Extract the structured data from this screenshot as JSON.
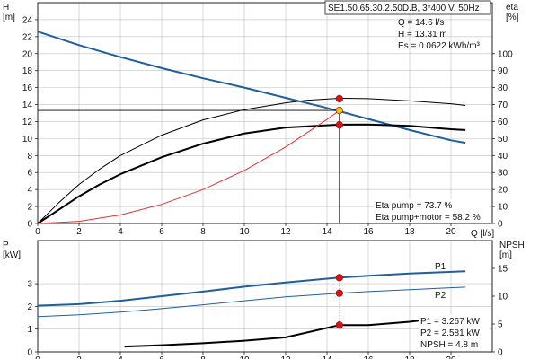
{
  "chart_data": [
    {
      "type": "line",
      "title": "SE1.50.65.30.2.50D.B, 3*400 V, 50Hz",
      "xlabel": "Q [l/s]",
      "ylabel_left": "H\n[m]",
      "ylabel_right": "eta\n[%]",
      "xlim": [
        0,
        22
      ],
      "x_ticks": [
        0,
        2,
        4,
        6,
        8,
        10,
        12,
        14,
        16,
        18,
        20
      ],
      "ylim_left": [
        0,
        26
      ],
      "y_left_ticks": [
        0,
        2,
        4,
        6,
        8,
        10,
        12,
        14,
        16,
        18,
        20,
        22,
        24
      ],
      "ylim_right": [
        0,
        130
      ],
      "y_right_ticks": [
        0,
        10,
        20,
        30,
        40,
        50,
        60,
        70,
        80,
        90,
        100
      ],
      "grid": true,
      "series": [
        {
          "axis": "left",
          "color": "#1f5fa0",
          "width": 2,
          "points": [
            [
              0,
              22.6
            ],
            [
              2,
              21.0
            ],
            [
              4,
              19.6
            ],
            [
              6,
              18.3
            ],
            [
              8,
              17.1
            ],
            [
              10,
              16.0
            ],
            [
              12,
              14.8
            ],
            [
              14,
              13.6
            ],
            [
              16,
              12.3
            ],
            [
              18,
              11.0
            ],
            [
              20,
              9.8
            ],
            [
              20.7,
              9.5
            ]
          ]
        },
        {
          "axis": "right",
          "color": "#000000",
          "width": 1,
          "points": [
            [
              0,
              0
            ],
            [
              1,
              12
            ],
            [
              2,
              23
            ],
            [
              3,
              32
            ],
            [
              4,
              40
            ],
            [
              6,
              52
            ],
            [
              8,
              61
            ],
            [
              10,
              67
            ],
            [
              12,
              71
            ],
            [
              13,
              72.5
            ],
            [
              14.6,
              73.7
            ],
            [
              16,
              73.5
            ],
            [
              18,
              72.2
            ],
            [
              20,
              70.5
            ],
            [
              20.7,
              69.5
            ]
          ]
        },
        {
          "axis": "right",
          "color": "#000000",
          "width": 2,
          "points": [
            [
              0,
              0
            ],
            [
              1,
              8
            ],
            [
              2,
              16
            ],
            [
              3,
              23
            ],
            [
              4,
              29
            ],
            [
              6,
              39
            ],
            [
              8,
              47
            ],
            [
              10,
              53
            ],
            [
              12,
              56.5
            ],
            [
              14.6,
              58.2
            ],
            [
              16,
              58.3
            ],
            [
              18,
              57.5
            ],
            [
              20,
              55.5
            ],
            [
              20.7,
              55
            ]
          ]
        },
        {
          "axis": "left",
          "color": "#e03030",
          "width": 1,
          "points": [
            [
              0,
              0
            ],
            [
              2,
              0.25
            ],
            [
              4,
              1.0
            ],
            [
              6,
              2.25
            ],
            [
              8,
              4.0
            ],
            [
              10,
              6.25
            ],
            [
              12,
              9.0
            ],
            [
              14,
              12.25
            ],
            [
              14.6,
              13.31
            ]
          ]
        }
      ],
      "markers": [
        {
          "x": 14.6,
          "y": 14.7,
          "axis": "left",
          "color": "#e01010"
        },
        {
          "x": 14.6,
          "y": 11.6,
          "axis": "left",
          "color": "#e01010"
        },
        {
          "x": 14.6,
          "y": 13.31,
          "axis": "left",
          "color": "#f0c020"
        }
      ],
      "duty_point": {
        "x": 14.6,
        "y": 13.31
      },
      "annotations": [
        "Q = 14.6 l/s",
        "H = 13.31 m",
        "Es = 0.0622 kWh/m³"
      ],
      "efficiency_labels": [
        "Eta pump = 73.7 %",
        "Eta pump+motor = 58.2 %"
      ]
    },
    {
      "type": "line",
      "xlabel": "",
      "ylabel_left": "P\n[kW]",
      "ylabel_right": "NPSH\n[m]",
      "xlim": [
        0,
        22
      ],
      "x_ticks": [
        0,
        2,
        4,
        6,
        8,
        10,
        12,
        14,
        16,
        18,
        20
      ],
      "ylim_left": [
        0,
        4.9
      ],
      "y_left_ticks": [
        0,
        1,
        2,
        3
      ],
      "ylim_right": [
        0,
        20
      ],
      "y_right_ticks": [
        0,
        5,
        10,
        15
      ],
      "grid": true,
      "series": [
        {
          "name": "P1",
          "axis": "left",
          "color": "#1f5fa0",
          "width": 2,
          "points": [
            [
              0,
              2.03
            ],
            [
              2,
              2.1
            ],
            [
              4,
              2.25
            ],
            [
              6,
              2.45
            ],
            [
              8,
              2.65
            ],
            [
              10,
              2.87
            ],
            [
              12,
              3.05
            ],
            [
              14.6,
              3.267
            ],
            [
              16,
              3.35
            ],
            [
              18,
              3.45
            ],
            [
              20.7,
              3.55
            ]
          ]
        },
        {
          "name": "P2",
          "axis": "left",
          "color": "#1f5fa0",
          "width": 1,
          "points": [
            [
              0,
              1.55
            ],
            [
              2,
              1.63
            ],
            [
              4,
              1.75
            ],
            [
              6,
              1.9
            ],
            [
              8,
              2.07
            ],
            [
              10,
              2.25
            ],
            [
              12,
              2.42
            ],
            [
              14.6,
              2.581
            ],
            [
              16,
              2.65
            ],
            [
              18,
              2.74
            ],
            [
              20.7,
              2.85
            ]
          ]
        },
        {
          "name": "NPSH",
          "axis": "right",
          "color": "#000000",
          "width": 2,
          "points": [
            [
              4.2,
              0.95
            ],
            [
              6,
              1.2
            ],
            [
              8,
              1.55
            ],
            [
              10,
              2.0
            ],
            [
              12,
              2.6
            ],
            [
              14.6,
              4.8
            ],
            [
              16,
              4.8
            ],
            [
              18,
              5.4
            ],
            [
              19.5,
              6.1
            ]
          ]
        }
      ],
      "markers": [
        {
          "x": 14.6,
          "y": 3.267,
          "axis": "left",
          "color": "#e01010"
        },
        {
          "x": 14.6,
          "y": 2.581,
          "axis": "left",
          "color": "#e01010"
        },
        {
          "x": 14.6,
          "y": 4.8,
          "axis": "right",
          "color": "#e01010"
        }
      ],
      "curve_labels": [
        "P1",
        "P2"
      ],
      "annotations": [
        "P1 = 3.267 kW",
        "P2 = 2.581 kW",
        "NPSH = 4.8 m"
      ]
    }
  ]
}
